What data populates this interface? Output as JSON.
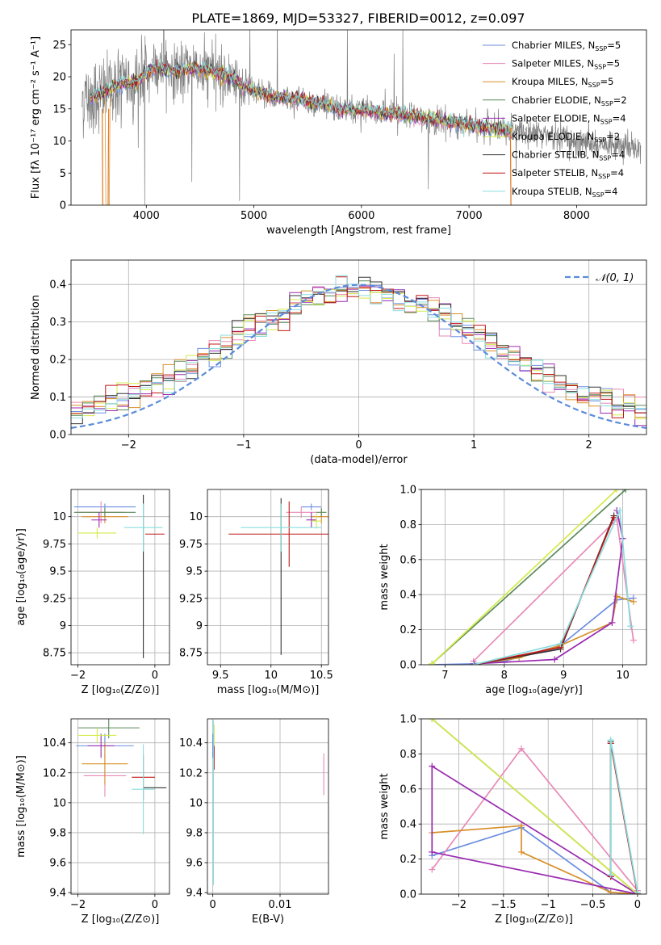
{
  "title": "PLATE=1869, MJD=53327, FIBERID=0012, z=0.097",
  "colors": {
    "Chabrier MILES": "#6c8ee0",
    "Salpeter MILES": "#e88ab8",
    "Kroupa MILES": "#d8902a",
    "Chabrier ELODIE": "#5a8a5a",
    "Salpeter ELODIE": "#9a2ab0",
    "Kroupa ELODIE": "#d4ea4a",
    "Chabrier STELIB": "#333333",
    "Salpeter STELIB": "#c01818",
    "Kroupa STELIB": "#88dede",
    "data": "#7f7f7f",
    "orange_line": "#e07820",
    "normal": "#5b8bd9"
  },
  "chart_data": [
    {
      "id": "spectrum",
      "type": "line",
      "xlabel": "wavelength [Angstrom, rest frame]",
      "ylabel": "Flux [fλ 10⁻¹⁷ erg cm⁻² s⁻¹ A⁻¹]",
      "xlim": [
        3300,
        8650
      ],
      "ylim": [
        0,
        27.3
      ],
      "xticks": [
        4000,
        5000,
        6000,
        7000,
        8000
      ],
      "yticks": [
        0,
        5,
        10,
        15,
        20,
        25
      ],
      "legend": [
        {
          "name": "Chabrier MILES",
          "nssp": "5"
        },
        {
          "name": "Salpeter MILES",
          "nssp": "5"
        },
        {
          "name": "Kroupa MILES",
          "nssp": "5"
        },
        {
          "name": "Chabrier ELODIE",
          "nssp": "2"
        },
        {
          "name": "Salpeter ELODIE",
          "nssp": "4"
        },
        {
          "name": "Kroupa ELODIE",
          "nssp": "2"
        },
        {
          "name": "Chabrier STELIB",
          "nssp": "4"
        },
        {
          "name": "Salpeter STELIB",
          "nssp": "4"
        },
        {
          "name": "Kroupa STELIB",
          "nssp": "4"
        }
      ],
      "legend_position": "upper right",
      "model_continuum": {
        "x": [
          3500,
          3600,
          3700,
          3800,
          3900,
          4000,
          4100,
          4200,
          4300,
          4400,
          4500,
          4600,
          4700,
          4800,
          4900,
          5000,
          5200,
          5400,
          5600,
          5800,
          6000,
          6200,
          6400,
          6600,
          6800,
          7000,
          7200,
          7400
        ],
        "y": [
          16.8,
          17.5,
          18.5,
          19.0,
          19.0,
          20.5,
          21.5,
          21.0,
          20.8,
          21.2,
          21.0,
          20.8,
          20.3,
          19.7,
          18.6,
          17.8,
          16.8,
          16.5,
          15.8,
          15.0,
          14.8,
          14.3,
          14.0,
          13.5,
          13.0,
          12.5,
          12.0,
          11.5
        ]
      },
      "data_continuum": {
        "x": [
          3400,
          3500,
          3600,
          3700,
          3800,
          3900,
          4000,
          4100,
          4200,
          4300,
          4400,
          4500,
          4600,
          4700,
          4800,
          4900,
          5000,
          5200,
          5400,
          5600,
          5800,
          6000,
          6200,
          6400,
          6600,
          6800,
          7000,
          7200,
          7400,
          7600,
          7800,
          8000,
          8200,
          8400,
          8600
        ],
        "y": [
          16.5,
          17.0,
          17.5,
          18.5,
          19.0,
          19.0,
          20.5,
          21.5,
          21.0,
          20.8,
          21.2,
          21.0,
          20.8,
          20.3,
          19.7,
          18.6,
          17.8,
          16.8,
          16.5,
          15.8,
          15.0,
          14.8,
          14.3,
          14.0,
          13.5,
          13.0,
          12.5,
          12.0,
          11.5,
          11.0,
          10.5,
          10.0,
          9.5,
          9.2,
          9.0
        ]
      }
    },
    {
      "id": "residuals",
      "type": "line",
      "xlabel": "(data-model)/error",
      "ylabel": "Normed distribution",
      "xlim": [
        -2.5,
        2.5
      ],
      "ylim": [
        0,
        0.465
      ],
      "xticks": [
        -2,
        -1,
        0,
        1,
        2
      ],
      "yticks": [
        0.0,
        0.1,
        0.2,
        0.3,
        0.4
      ],
      "legend_label": "𝒩(0, 1)",
      "legend_position": "upper right",
      "grid": true,
      "bins": {
        "start": -2.5,
        "width": 0.1,
        "count": 50
      }
    },
    {
      "id": "age_Z",
      "type": "scatter",
      "xlabel": "Z [log₁₀(Z/Z⊙)]",
      "ylabel": "age  [log₁₀(age/yr)]",
      "xlim": [
        -2.18,
        0.38
      ],
      "ylim": [
        8.64,
        10.25
      ],
      "xticks": [
        -2,
        0
      ],
      "yticks": [
        8.75,
        9.0,
        9.25,
        9.5,
        9.75,
        10.0
      ],
      "grid": true,
      "errorbars": [
        {
          "series": "Chabrier MILES",
          "x": -1.3,
          "y": 10.09,
          "xerr": 0.8,
          "yerr": 0.03
        },
        {
          "series": "Salpeter MILES",
          "x": -1.4,
          "y": 10.04,
          "xerr": 0.6,
          "yerr": 0.1
        },
        {
          "series": "Kroupa MILES",
          "x": -1.3,
          "y": 10.0,
          "xerr": 0.6,
          "yerr": 0.06
        },
        {
          "series": "Chabrier ELODIE",
          "x": -1.3,
          "y": 10.04,
          "xerr": 0.8,
          "yerr": 0.04
        },
        {
          "series": "Salpeter ELODIE",
          "x": -1.45,
          "y": 9.97,
          "xerr": 0.2,
          "yerr": 0.07
        },
        {
          "series": "Kroupa ELODIE",
          "x": -1.5,
          "y": 9.85,
          "xerr": 0.5,
          "yerr": 0.05
        },
        {
          "series": "Chabrier STELIB",
          "x": -0.3,
          "y": 9.45,
          "xerr": 0.0,
          "yerr": 0.75
        },
        {
          "series": "Salpeter STELIB",
          "x": 0.0,
          "y": 9.84,
          "xerr": 0.25,
          "yerr": 0.0
        },
        {
          "series": "Kroupa STELIB",
          "x": -0.3,
          "y": 9.9,
          "xerr": 0.5,
          "yerr": 0.22
        }
      ]
    },
    {
      "id": "age_mass",
      "type": "scatter",
      "xlabel": "mass [log₁₀(M/M⊙)]",
      "ylabel": "",
      "xlim": [
        9.37,
        10.57
      ],
      "ylim": [
        8.64,
        10.25
      ],
      "xticks": [
        9.5,
        10.0,
        10.5
      ],
      "yticks": [
        8.75,
        9.0,
        9.25,
        9.5,
        9.75,
        10.0
      ],
      "grid": true,
      "errorbars": [
        {
          "series": "Chabrier MILES",
          "x": 10.4,
          "y": 10.09,
          "xerr": 0.1,
          "yerr": 0.03
        },
        {
          "series": "Salpeter MILES",
          "x": 10.3,
          "y": 10.04,
          "xerr": 0.15,
          "yerr": 0.05
        },
        {
          "series": "Kroupa MILES",
          "x": 10.5,
          "y": 10.0,
          "xerr": 0.1,
          "yerr": 0.06
        },
        {
          "series": "Chabrier ELODIE",
          "x": 10.5,
          "y": 10.04,
          "xerr": 0.05,
          "yerr": 0.04
        },
        {
          "series": "Salpeter ELODIE",
          "x": 10.4,
          "y": 9.97,
          "xerr": 0.05,
          "yerr": 0.07
        },
        {
          "series": "Kroupa ELODIE",
          "x": 10.45,
          "y": 9.96,
          "xerr": 0.05,
          "yerr": 0.07
        },
        {
          "series": "Chabrier STELIB",
          "x": 10.1,
          "y": 9.45,
          "xerr": 0.0,
          "yerr": 0.72
        },
        {
          "series": "Salpeter STELIB",
          "x": 10.18,
          "y": 9.84,
          "xerr": 0.6,
          "yerr": 0.3
        },
        {
          "series": "Kroupa STELIB",
          "x": 10.1,
          "y": 9.9,
          "xerr": 0.4,
          "yerr": 0.22
        }
      ]
    },
    {
      "id": "massweight_age",
      "type": "line",
      "xlabel": "age  [log₁₀(age/yr)]",
      "ylabel": "mass weight",
      "xlim": [
        6.6,
        10.4
      ],
      "ylim": [
        0,
        1.0
      ],
      "xticks": [
        7,
        8,
        9,
        10
      ],
      "yticks": [
        0.0,
        0.2,
        0.4,
        0.6,
        0.8,
        1.0
      ],
      "grid": true,
      "series": [
        {
          "name": "Chabrier MILES",
          "x": [
            6.78,
            7.5,
            8.0,
            8.95,
            9.9,
            10.18
          ],
          "y": [
            0.0,
            0.005,
            0.02,
            0.11,
            0.37,
            0.38
          ]
        },
        {
          "name": "Salpeter MILES",
          "x": [
            7.48,
            9.9,
            10.18
          ],
          "y": [
            0.02,
            0.83,
            0.14
          ]
        },
        {
          "name": "Kroupa MILES",
          "x": [
            7.48,
            8.25,
            8.95,
            9.82,
            9.9,
            10.18
          ],
          "y": [
            0.0,
            0.04,
            0.11,
            0.24,
            0.39,
            0.36
          ]
        },
        {
          "name": "Chabrier ELODIE",
          "x": [
            6.78,
            10.05
          ],
          "y": [
            0.005,
            1.0
          ]
        },
        {
          "name": "Salpeter ELODIE",
          "x": [
            7.48,
            8.85,
            9.82,
            10.0,
            9.9
          ],
          "y": [
            0.005,
            0.03,
            0.24,
            0.72,
            0.88
          ]
        },
        {
          "name": "Kroupa ELODIE",
          "x": [
            6.78,
            9.9
          ],
          "y": [
            0.005,
            1.0
          ]
        },
        {
          "name": "Chabrier STELIB",
          "x": [
            7.48,
            8.95,
            9.85
          ],
          "y": [
            0.0,
            0.09,
            0.85
          ]
        },
        {
          "name": "Salpeter STELIB",
          "x": [
            7.48,
            8.95,
            9.85
          ],
          "y": [
            0.0,
            0.1,
            0.84
          ]
        },
        {
          "name": "Kroupa STELIB",
          "x": [
            7.48,
            8.95,
            9.95,
            10.13
          ],
          "y": [
            0.0,
            0.12,
            0.88,
            0.22
          ]
        }
      ]
    },
    {
      "id": "mass_Z",
      "type": "scatter",
      "xlabel": "Z [log₁₀(Z/Z⊙)]",
      "ylabel": "mass [log₁₀(M/M⊙)]",
      "xlim": [
        -2.18,
        0.38
      ],
      "ylim": [
        9.39,
        10.56
      ],
      "xticks": [
        -2,
        0
      ],
      "yticks": [
        9.4,
        9.6,
        9.8,
        10.0,
        10.2,
        10.4
      ],
      "grid": true,
      "errorbars": [
        {
          "series": "Chabrier MILES",
          "x": -1.3,
          "y": 10.38,
          "xerr": 0.75,
          "yerr": 0.08
        },
        {
          "series": "Salpeter MILES",
          "x": -1.3,
          "y": 10.18,
          "xerr": 0.55,
          "yerr": 0.14
        },
        {
          "series": "Kroupa MILES",
          "x": -1.3,
          "y": 10.26,
          "xerr": 0.6,
          "yerr": 0.14
        },
        {
          "series": "Chabrier ELODIE",
          "x": -1.2,
          "y": 10.5,
          "xerr": 0.8,
          "yerr": 0.07
        },
        {
          "series": "Salpeter ELODIE",
          "x": -1.4,
          "y": 10.38,
          "xerr": 0.35,
          "yerr": 0.08
        },
        {
          "series": "Kroupa ELODIE",
          "x": -1.5,
          "y": 10.45,
          "xerr": 0.5,
          "yerr": 0.05
        },
        {
          "series": "Chabrier STELIB",
          "x": 0.0,
          "y": 10.1,
          "xerr": 0.3,
          "yerr": 0.0
        },
        {
          "series": "Salpeter STELIB",
          "x": -0.3,
          "y": 10.17,
          "xerr": 0.3,
          "yerr": 0.15
        },
        {
          "series": "Kroupa STELIB",
          "x": -0.3,
          "y": 10.09,
          "xerr": 0.3,
          "yerr": 0.3
        }
      ]
    },
    {
      "id": "mass_EBV",
      "type": "scatter",
      "xlabel": "E(B-V)",
      "ylabel": "",
      "xlim": [
        -0.0008,
        0.0172
      ],
      "ylim": [
        9.39,
        10.56
      ],
      "xticks": [
        0.0,
        0.01
      ],
      "yticks": [
        9.4,
        9.6,
        9.8,
        10.0,
        10.2,
        10.4
      ],
      "grid": true,
      "errorbars": [
        {
          "series": "Salpeter MILES",
          "x": 0.0165,
          "y": 10.19,
          "xerr": 0.0,
          "yerr": 0.14
        },
        {
          "series": "Kroupa ELODIE",
          "x": 0.0002,
          "y": 10.42,
          "xerr": 0.0,
          "yerr": 0.1
        },
        {
          "series": "Salpeter STELIB",
          "x": 0.0002,
          "y": 10.3,
          "xerr": 0.0,
          "yerr": 0.08
        },
        {
          "series": "Kroupa STELIB",
          "x": 0.0001,
          "y": 10.0,
          "xerr": 0.0,
          "yerr": 0.55
        },
        {
          "series": "Chabrier MILES",
          "x": 0.0,
          "y": 10.38,
          "xerr": 0.0,
          "yerr": 0.08
        }
      ]
    },
    {
      "id": "massweight_Z",
      "type": "line",
      "xlabel": "Z [log₁₀(Z/Z⊙)]",
      "ylabel": "mass weight",
      "xlim": [
        -2.42,
        0.1
      ],
      "ylim": [
        0,
        1.0
      ],
      "xticks": [
        -2.0,
        -1.5,
        -1.0,
        -0.5,
        0.0
      ],
      "yticks": [
        0.0,
        0.2,
        0.4,
        0.6,
        0.8,
        1.0
      ],
      "grid": true,
      "series": [
        {
          "name": "Chabrier MILES",
          "x": [
            -2.3,
            -1.3,
            -0.3,
            0.0
          ],
          "y": [
            0.22,
            0.38,
            0.01,
            0.0
          ]
        },
        {
          "name": "Salpeter MILES",
          "x": [
            -2.3,
            -1.3,
            0.0
          ],
          "y": [
            0.14,
            0.83,
            0.02
          ]
        },
        {
          "name": "Kroupa MILES",
          "x": [
            -2.3,
            -1.3,
            -1.3,
            -0.3,
            0.0
          ],
          "y": [
            0.35,
            0.39,
            0.24,
            0.01,
            0.0
          ]
        },
        {
          "name": "Chabrier ELODIE",
          "x": [
            -2.3,
            0.0
          ],
          "y": [
            1.0,
            0.0
          ]
        },
        {
          "name": "Salpeter ELODIE",
          "x": [
            -2.3,
            -2.3,
            0.0,
            -2.3
          ],
          "y": [
            0.24,
            0.73,
            0.0,
            0.24
          ]
        },
        {
          "name": "Kroupa ELODIE",
          "x": [
            -2.3,
            0.0
          ],
          "y": [
            1.0,
            0.0
          ]
        },
        {
          "name": "Chabrier STELIB",
          "x": [
            -0.3,
            -0.3,
            0.0
          ],
          "y": [
            0.1,
            0.87,
            0.0
          ]
        },
        {
          "name": "Salpeter STELIB",
          "x": [
            -0.3,
            -0.3,
            0.0
          ],
          "y": [
            0.1,
            0.86,
            0.0
          ]
        },
        {
          "name": "Kroupa STELIB",
          "x": [
            -0.3,
            -0.3,
            0.0
          ],
          "y": [
            0.11,
            0.88,
            0.01
          ]
        }
      ]
    }
  ]
}
